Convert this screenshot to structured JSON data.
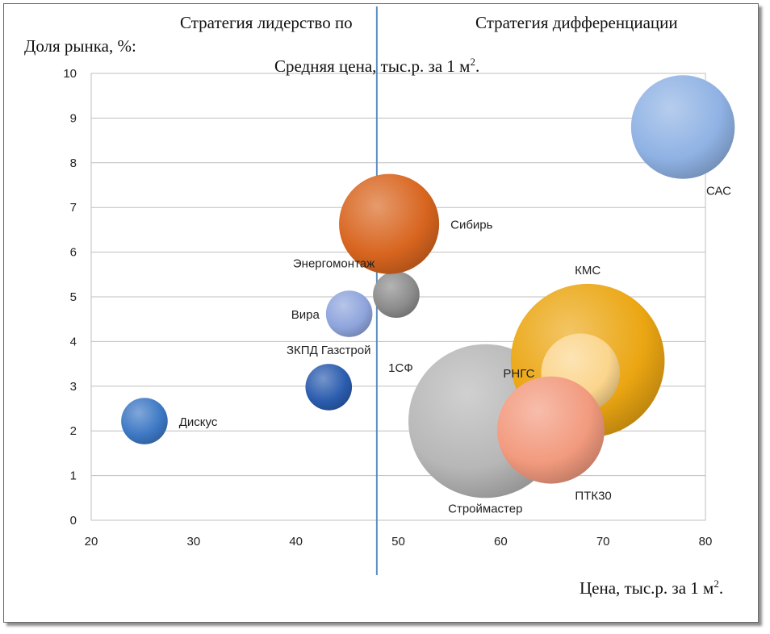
{
  "chart_data": {
    "type": "bubble",
    "strategy_left": "Стратегия лидерство по",
    "strategy_right": "Стратегия дифференциации",
    "ylabel": "Доля рынка, %:",
    "divider_label": "Средняя цена, тыс.р. за 1 м",
    "divider_label_sup": "2",
    "divider_label_end": ".",
    "xlabel": "Цена, тыс.р. за 1 м",
    "xlabel_sup": "2",
    "xlabel_end": ".",
    "xlim": [
      20,
      80
    ],
    "ylim": [
      0,
      10
    ],
    "xticks": [
      20,
      30,
      40,
      50,
      60,
      70,
      80
    ],
    "yticks": [
      0,
      1,
      2,
      3,
      4,
      5,
      6,
      7,
      8,
      9,
      10
    ],
    "grid": true,
    "divider_x": 47.9,
    "points": [
      {
        "name": "Дискус",
        "x": 25.2,
        "y": 2.22,
        "r": 1.3,
        "color": "#3d78c4",
        "label_pos": "right"
      },
      {
        "name": "ЗКПД Газстрой",
        "x": 43.2,
        "y": 2.98,
        "r": 1.3,
        "color": "#2b5cae",
        "label_pos": "above"
      },
      {
        "name": "Вира",
        "x": 45.2,
        "y": 4.62,
        "r": 1.3,
        "color": "#8ea4dc",
        "label_pos": "left"
      },
      {
        "name": "Энергомонтаж",
        "x": 49.8,
        "y": 5.05,
        "r": 1.3,
        "color": "#8c8c8c",
        "label_pos": "above-left"
      },
      {
        "name": "Сибирь",
        "x": 49.1,
        "y": 6.63,
        "r": 2.8,
        "color": "#d8651f",
        "label_pos": "right"
      },
      {
        "name": "САС",
        "x": 77.8,
        "y": 8.8,
        "r": 2.9,
        "color": "#8fb2e4",
        "label_pos": "below-right"
      },
      {
        "name": "1СФ",
        "x": 56.0,
        "y": 2.15,
        "r": 2.7,
        "color": "#5f9a3a",
        "label_pos": "above-left"
      },
      {
        "name": "Строймастер",
        "x": 58.5,
        "y": 2.22,
        "r": 4.3,
        "color": "#b7b7b7",
        "label_pos": "below"
      },
      {
        "name": "КМС",
        "x": 68.5,
        "y": 3.57,
        "r": 4.3,
        "color": "#eba612",
        "label_pos": "above"
      },
      {
        "name": "РНГС",
        "x": 67.8,
        "y": 3.3,
        "r": 2.2,
        "color": "#fbd58c",
        "label_pos": "left"
      },
      {
        "name": "ПТК30",
        "x": 64.9,
        "y": 2.02,
        "r": 3.0,
        "color": "#f29a7e",
        "label_pos": "below-right"
      }
    ]
  }
}
